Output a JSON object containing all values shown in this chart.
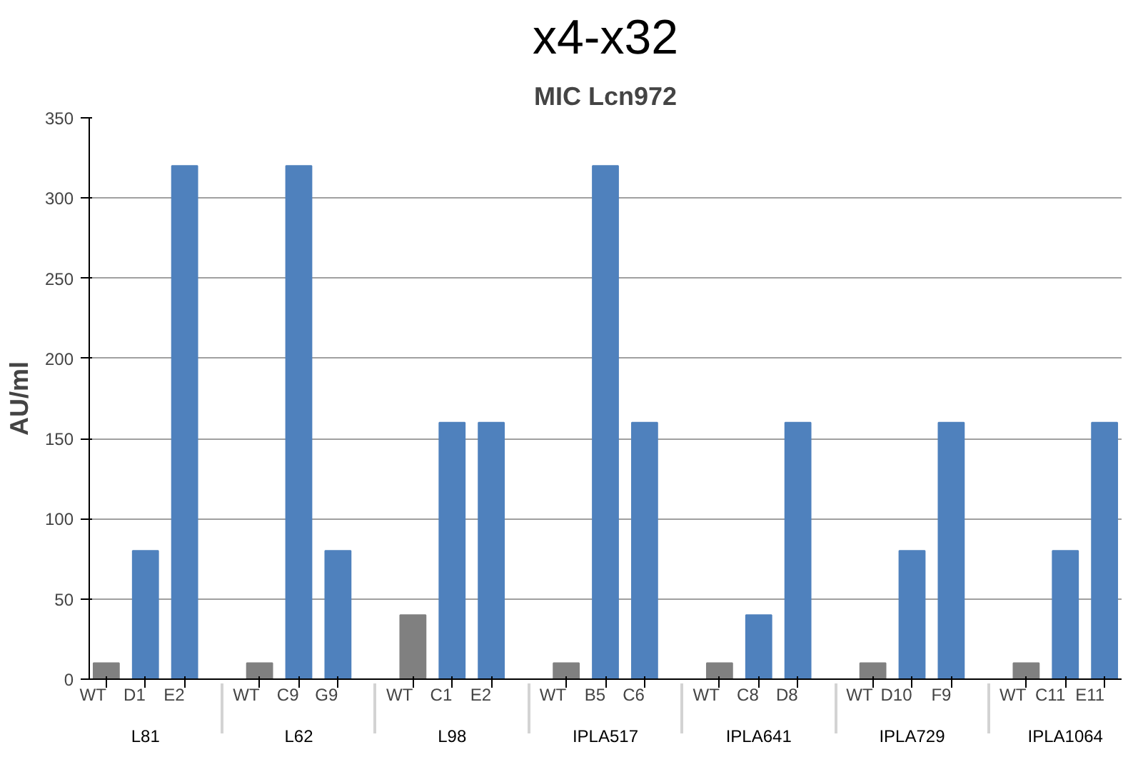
{
  "chart_data": {
    "type": "bar",
    "title": "x4-x32",
    "subtitle": "MIC Lcn972",
    "ylabel": "AU/ml",
    "categories": [
      "WT",
      "D1",
      "E2",
      "WT",
      "C9",
      "G9",
      "WT",
      "C1",
      "E2",
      "WT",
      "B5",
      "C6",
      "WT",
      "C8",
      "D8",
      "WT",
      "D10",
      "F9",
      "WT",
      "C11",
      "E11"
    ],
    "annotations": [
      "L81",
      "L62",
      "L98",
      "IPLA517",
      "IPLA641",
      "IPLA729",
      "IPLA1064"
    ],
    "values": [
      10,
      80,
      320,
      10,
      320,
      80,
      40,
      160,
      160,
      10,
      320,
      160,
      10,
      40,
      160,
      10,
      80,
      160,
      10,
      80,
      160
    ],
    "colors": [
      "#808080",
      "#4f81bd",
      "#4f81bd",
      "#808080",
      "#4f81bd",
      "#4f81bd",
      "#808080",
      "#4f81bd",
      "#4f81bd",
      "#808080",
      "#4f81bd",
      "#4f81bd",
      "#808080",
      "#4f81bd",
      "#4f81bd",
      "#808080",
      "#4f81bd",
      "#4f81bd",
      "#808080",
      "#4f81bd",
      "#4f81bd"
    ],
    "ylim": [
      0,
      350
    ],
    "yticks": [
      0,
      50,
      100,
      150,
      200,
      250,
      300,
      350
    ],
    "grid": "y"
  }
}
